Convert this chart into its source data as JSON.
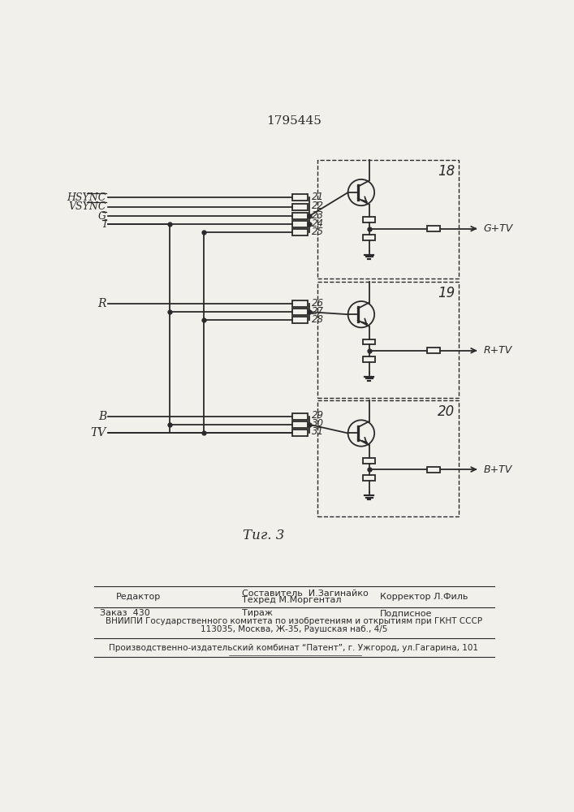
{
  "title": "1795445",
  "fig_caption": "Τиг. 3",
  "bg_color": "#f2f0eb",
  "line_color": "#2a2a2a",
  "font_color": "#2a2a2a",
  "input_labels_top": [
    "HSYNC",
    "VSYNC",
    "G",
    "I"
  ],
  "resistor_labels_top": [
    "21",
    "22",
    "23",
    "24",
    "25"
  ],
  "resistor_labels_mid": [
    "26",
    "27",
    "28"
  ],
  "resistor_labels_bot": [
    "29",
    "30",
    "31"
  ],
  "block_labels": [
    "18",
    "19",
    "20"
  ],
  "output_labels": [
    "G+TV",
    "R+TV",
    "B+TV"
  ],
  "input_R": "R",
  "input_B": "B",
  "input_TV": "TV",
  "footer_line1_left": "Редактор",
  "footer_line1_center1": "Составитель  И.Загинайко",
  "footer_line1_center2": "Техред М.Моргентал",
  "footer_line1_right": "Корректор Л.Филь",
  "footer_line2_col1": "Заказ  430",
  "footer_line2_col2": "Тираж",
  "footer_line2_col3": "Подписное",
  "footer_line3": "ВНИИПИ Государственного комитета по изобретениям и открытиям при ГКНТ СССР",
  "footer_line4": "113035, Москва, Ж-35, Раушская наб., 4/5",
  "footer_line5": "Производственно-издательский комбинат “Патент”, г. Ужгород, ул.Гагарина, 101"
}
